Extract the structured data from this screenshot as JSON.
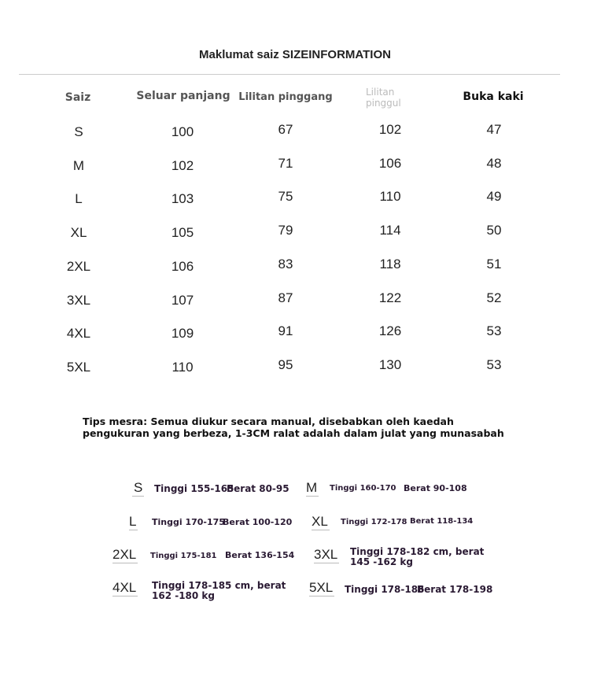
{
  "title": "Maklumat saiz SIZEINFORMATION",
  "table": {
    "headers": [
      "Saiz",
      "Seluar panjang",
      "Lilitan pinggang",
      "Lilitan pinggul",
      "Buka kaki"
    ],
    "rows": [
      [
        "S",
        "100",
        "67",
        "102",
        "47"
      ],
      [
        "M",
        "102",
        "71",
        "106",
        "48"
      ],
      [
        "L",
        "103",
        "75",
        "110",
        "49"
      ],
      [
        "XL",
        "105",
        "79",
        "114",
        "50"
      ],
      [
        "2XL",
        "106",
        "83",
        "118",
        "51"
      ],
      [
        "3XL",
        "107",
        "87",
        "122",
        "52"
      ],
      [
        "4XL",
        "109",
        "91",
        "126",
        "53"
      ],
      [
        "5XL",
        "110",
        "95",
        "130",
        "53"
      ]
    ]
  },
  "tips": "Tips mesra: Semua diukur secara manual, disebabkan oleh kaedah pengukuran yang berbeza, 1-3CM ralat adalah dalam julat yang munasabah",
  "guide": [
    {
      "size": "S",
      "height": "Tinggi 155-165",
      "weight": "Berat 80-95"
    },
    {
      "size": "M",
      "height": "Tinggi 160-170",
      "weight": "Berat 90-108"
    },
    {
      "size": "L",
      "height": "Tinggi 170-175",
      "weight": "Berat 100-120"
    },
    {
      "size": "XL",
      "height": "Tinggi 172-178",
      "weight": "Berat 118-134"
    },
    {
      "size": "2XL",
      "height": "Tinggi 175-181",
      "weight": "Berat 136-154"
    },
    {
      "size": "3XL",
      "text": "Tinggi 178-182 cm, berat 145 -162 kg"
    },
    {
      "size": "4XL",
      "text": "Tinggi 178-185 cm, berat 162 -180 kg"
    },
    {
      "size": "5XL",
      "height": "Tinggi 178-186",
      "weight": "Berat 178-198"
    }
  ]
}
